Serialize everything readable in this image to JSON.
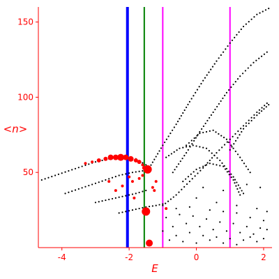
{
  "chart_data": {
    "type": "scatter",
    "xlabel": "E",
    "ylabel": "<n>",
    "xlim": [
      -4.7,
      2.25
    ],
    "ylim": [
      0,
      160
    ],
    "grid": false,
    "x_ticks": [
      {
        "value": -4,
        "label": "-4"
      },
      {
        "value": -2,
        "label": "-2"
      },
      {
        "value": 0,
        "label": "0"
      },
      {
        "value": 2,
        "label": "2"
      }
    ],
    "y_ticks": [
      {
        "value": 50,
        "label": "50"
      },
      {
        "value": 100,
        "label": "100"
      },
      {
        "value": 150,
        "label": "150"
      }
    ],
    "colors": {
      "axes": "#ff0000",
      "black_points": "#000000",
      "red_points": "#ff0000",
      "line_blue": "#0000ff",
      "line_green": "#008000",
      "line_magenta": "#ff00ff"
    },
    "vertical_lines": [
      {
        "x": -2.05,
        "color": "#0000ff",
        "width": "thick"
      },
      {
        "x": -1.55,
        "color": "#008000",
        "width": "thin"
      },
      {
        "x": -1.0,
        "color": "#ff00ff",
        "width": "thin"
      },
      {
        "x": 1.0,
        "color": "#ff00ff",
        "width": "thin"
      }
    ],
    "series": [
      {
        "color": "#000000",
        "style": "dotted-curve",
        "points": [
          [
            -4.6,
            45
          ],
          [
            -4.2,
            48
          ],
          [
            -3.8,
            51
          ],
          [
            -3.4,
            54
          ],
          [
            -3.0,
            57
          ],
          [
            -2.6,
            59
          ],
          [
            -2.2,
            60
          ],
          [
            -1.8,
            59
          ],
          [
            -1.5,
            55
          ]
        ]
      },
      {
        "color": "#000000",
        "style": "dotted-curve",
        "points": [
          [
            -3.9,
            36
          ],
          [
            -3.5,
            39
          ],
          [
            -3.1,
            42
          ],
          [
            -2.7,
            45
          ],
          [
            -2.3,
            48
          ],
          [
            -1.9,
            50
          ],
          [
            -1.6,
            51
          ]
        ]
      },
      {
        "color": "#000000",
        "style": "dotted-curve",
        "points": [
          [
            -3.0,
            30
          ],
          [
            -2.6,
            32
          ],
          [
            -2.2,
            34
          ],
          [
            -1.8,
            36
          ],
          [
            -1.5,
            38
          ]
        ]
      },
      {
        "color": "#000000",
        "style": "dotted-curve",
        "points": [
          [
            -2.3,
            23
          ],
          [
            -1.9,
            25
          ],
          [
            -1.5,
            27
          ],
          [
            -1.2,
            28
          ],
          [
            -1.0,
            29
          ]
        ]
      },
      {
        "color": "#000000",
        "style": "dotted-curve",
        "points": [
          [
            -1.4,
            53
          ],
          [
            -1.0,
            68
          ],
          [
            -0.6,
            82
          ],
          [
            -0.2,
            97
          ],
          [
            0.2,
            111
          ],
          [
            0.6,
            124
          ],
          [
            1.0,
            136
          ],
          [
            1.4,
            147
          ],
          [
            1.8,
            155
          ],
          [
            2.15,
            159
          ]
        ]
      },
      {
        "color": "#000000",
        "style": "dotted-curve",
        "points": [
          [
            -0.7,
            50
          ],
          [
            -0.3,
            63
          ],
          [
            0.1,
            77
          ],
          [
            0.5,
            90
          ],
          [
            0.9,
            103
          ],
          [
            1.3,
            114
          ],
          [
            1.7,
            123
          ],
          [
            2.1,
            130
          ]
        ]
      },
      {
        "color": "#000000",
        "style": "dotted-curve",
        "points": [
          [
            -1.0,
            28
          ],
          [
            -0.6,
            35
          ],
          [
            -0.2,
            44
          ],
          [
            0.2,
            53
          ],
          [
            0.6,
            63
          ],
          [
            1.0,
            72
          ],
          [
            1.4,
            81
          ],
          [
            1.8,
            90
          ],
          [
            2.1,
            96
          ]
        ]
      },
      {
        "color": "#000000",
        "style": "dotted-curve",
        "points": [
          [
            1.0,
            65
          ],
          [
            1.4,
            79
          ],
          [
            1.8,
            88
          ],
          [
            2.15,
            95
          ]
        ]
      },
      {
        "color": "#000000",
        "style": "dotted-curve",
        "points": [
          [
            -0.3,
            68
          ],
          [
            0.1,
            76
          ],
          [
            0.5,
            78
          ],
          [
            0.9,
            72
          ],
          [
            1.3,
            60
          ],
          [
            1.6,
            50
          ]
        ]
      },
      {
        "color": "#000000",
        "style": "dotted-curve",
        "points": [
          [
            -0.9,
            60
          ],
          [
            -0.5,
            66
          ],
          [
            -0.1,
            68
          ],
          [
            0.3,
            66
          ],
          [
            0.7,
            58
          ],
          [
            1.1,
            47
          ],
          [
            1.4,
            36
          ]
        ]
      },
      {
        "color": "#000000",
        "style": "dotted-curve",
        "points": [
          [
            -0.4,
            44
          ],
          [
            0.0,
            52
          ],
          [
            0.4,
            56
          ],
          [
            0.8,
            54
          ],
          [
            1.1,
            45
          ],
          [
            1.3,
            35
          ]
        ]
      },
      {
        "color": "#000000",
        "style": "scatter",
        "points": [
          [
            -0.9,
            20
          ],
          [
            -0.5,
            22
          ],
          [
            -0.1,
            21
          ],
          [
            0.3,
            19
          ],
          [
            0.7,
            17
          ],
          [
            1.1,
            16
          ],
          [
            1.5,
            14
          ],
          [
            1.9,
            13
          ],
          [
            -0.7,
            14
          ],
          [
            -0.3,
            16
          ],
          [
            0.1,
            14
          ],
          [
            0.5,
            12
          ],
          [
            0.9,
            11
          ],
          [
            1.3,
            10
          ],
          [
            1.7,
            9
          ],
          [
            2.1,
            12
          ],
          [
            -0.6,
            8
          ],
          [
            -0.2,
            10
          ],
          [
            0.2,
            8
          ],
          [
            0.6,
            7
          ],
          [
            1.0,
            6
          ],
          [
            1.4,
            5
          ],
          [
            1.8,
            4
          ],
          [
            -0.8,
            5
          ],
          [
            -0.4,
            4
          ],
          [
            0.0,
            3
          ],
          [
            0.4,
            5
          ],
          [
            0.8,
            3
          ],
          [
            1.2,
            2
          ],
          [
            1.6,
            7
          ],
          [
            2.0,
            6
          ],
          [
            -1.0,
            11
          ],
          [
            -0.2,
            27
          ],
          [
            0.4,
            25
          ],
          [
            0.8,
            24
          ],
          [
            1.2,
            23
          ],
          [
            1.6,
            20
          ],
          [
            2.0,
            18
          ],
          [
            0.0,
            33
          ],
          [
            0.6,
            30
          ],
          [
            1.2,
            28
          ],
          [
            1.8,
            26
          ],
          [
            2.1,
            24
          ],
          [
            -0.6,
            26
          ],
          [
            0.2,
            40
          ],
          [
            0.8,
            38
          ],
          [
            1.5,
            42
          ],
          [
            1.9,
            40
          ]
        ]
      },
      {
        "color": "#ff0000",
        "style": "large-markers",
        "points": [
          [
            -3.3,
            56,
            2
          ],
          [
            -3.1,
            57,
            2
          ],
          [
            -2.9,
            58,
            3
          ],
          [
            -2.7,
            59,
            3
          ],
          [
            -2.55,
            60,
            4
          ],
          [
            -2.4,
            60,
            4
          ],
          [
            -2.25,
            60,
            5
          ],
          [
            -2.1,
            60,
            4
          ],
          [
            -1.95,
            59,
            4
          ],
          [
            -1.8,
            58,
            3
          ],
          [
            -1.7,
            57,
            3
          ],
          [
            -1.6,
            55,
            2
          ],
          [
            -1.55,
            53,
            3
          ],
          [
            -1.45,
            52,
            6
          ],
          [
            -1.5,
            24,
            6
          ],
          [
            -1.4,
            3,
            5
          ],
          [
            -1.7,
            46,
            2
          ],
          [
            -1.9,
            44,
            2
          ],
          [
            -2.0,
            47,
            2
          ],
          [
            -2.2,
            41,
            2
          ],
          [
            -2.4,
            38,
            2
          ],
          [
            -1.85,
            33,
            2
          ],
          [
            -1.3,
            40,
            2
          ],
          [
            -1.2,
            44,
            2
          ],
          [
            -1.25,
            38,
            2
          ],
          [
            -0.9,
            26,
            2
          ],
          [
            -1.6,
            48,
            2
          ],
          [
            -2.6,
            44,
            2
          ]
        ]
      }
    ]
  }
}
